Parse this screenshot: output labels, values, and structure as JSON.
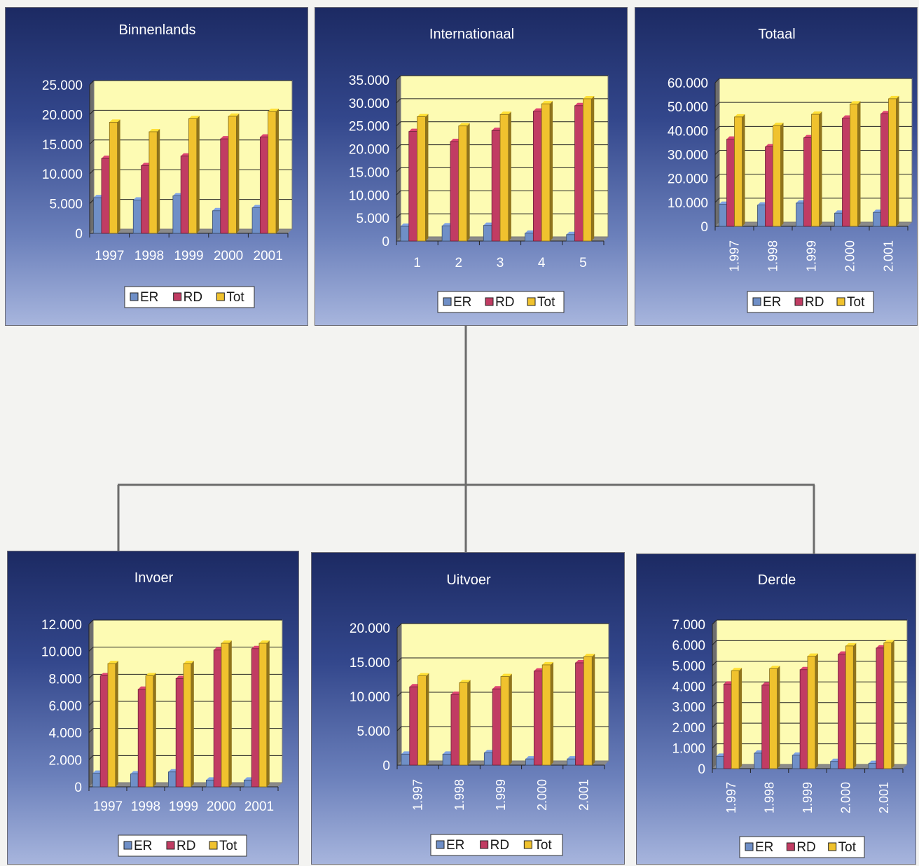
{
  "colors": {
    "ER": "#6f8fc7",
    "RD": "#c13c63",
    "Tot": "#f0c22e",
    "plot_bg": "#fdfbb3",
    "text": "#ffffff",
    "connector": "#6b6b6b"
  },
  "chart_data": [
    {
      "type": "bar",
      "title": "Binnenlands",
      "categories": [
        "1997",
        "1998",
        "1999",
        "2000",
        "2001"
      ],
      "rotate_ticks": false,
      "yticks": [
        "0",
        "5.000",
        "10.000",
        "15.000",
        "20.000",
        "25.000"
      ],
      "ylim": [
        0,
        25000
      ],
      "series": [
        {
          "name": "ER",
          "values": [
            6000,
            5600,
            6300,
            3800,
            4300
          ]
        },
        {
          "name": "RD",
          "values": [
            12600,
            11400,
            13000,
            15900,
            16200
          ]
        },
        {
          "name": "Tot",
          "values": [
            18700,
            17100,
            19300,
            19700,
            20500
          ]
        }
      ],
      "legend": [
        "ER",
        "RD",
        "Tot"
      ]
    },
    {
      "type": "bar",
      "title": "Internationaal",
      "categories": [
        "1",
        "2",
        "3",
        "4",
        "5"
      ],
      "rotate_ticks": false,
      "yticks": [
        "0",
        "5.000",
        "10.000",
        "15.000",
        "20.000",
        "25.000",
        "30.000",
        "35.000"
      ],
      "ylim": [
        0,
        35000
      ],
      "series": [
        {
          "name": "ER",
          "values": [
            3200,
            3300,
            3400,
            1700,
            1400
          ]
        },
        {
          "name": "RD",
          "values": [
            23800,
            21600,
            24000,
            28200,
            29400
          ]
        },
        {
          "name": "Tot",
          "values": [
            27000,
            25000,
            27500,
            29800,
            30900
          ]
        }
      ],
      "legend": [
        "ER",
        "RD",
        "Tot"
      ]
    },
    {
      "type": "bar",
      "title": "Totaal",
      "categories": [
        "1.997",
        "1.998",
        "1.999",
        "2.000",
        "2.001"
      ],
      "rotate_ticks": true,
      "yticks": [
        "0",
        "10.000",
        "20.000",
        "30.000",
        "40.000",
        "50.000",
        "60.000"
      ],
      "ylim": [
        0,
        60000
      ],
      "series": [
        {
          "name": "ER",
          "values": [
            9200,
            8900,
            9700,
            5500,
            5800
          ]
        },
        {
          "name": "RD",
          "values": [
            36400,
            33200,
            37000,
            45200,
            47000
          ]
        },
        {
          "name": "Tot",
          "values": [
            45700,
            42100,
            46800,
            51100,
            53300
          ]
        }
      ],
      "legend": [
        "ER",
        "RD",
        "Tot"
      ]
    },
    {
      "type": "bar",
      "title": "Invoer",
      "categories": [
        "1997",
        "1998",
        "1999",
        "2000",
        "2001"
      ],
      "rotate_ticks": false,
      "yticks": [
        "0",
        "2.000",
        "4.000",
        "6.000",
        "8.000",
        "10.000",
        "12.000"
      ],
      "ylim": [
        0,
        12000
      ],
      "series": [
        {
          "name": "ER",
          "values": [
            1000,
            950,
            1100,
            500,
            500
          ]
        },
        {
          "name": "RD",
          "values": [
            8200,
            7200,
            8000,
            10100,
            10200
          ]
        },
        {
          "name": "Tot",
          "values": [
            9100,
            8200,
            9100,
            10600,
            10600
          ]
        }
      ],
      "legend": [
        "ER",
        "RD",
        "Tot"
      ]
    },
    {
      "type": "bar",
      "title": "Uitvoer",
      "categories": [
        "1.997",
        "1.998",
        "1.999",
        "2.000",
        "2.001"
      ],
      "rotate_ticks": true,
      "yticks": [
        "0",
        "5.000",
        "10.000",
        "15.000",
        "20.000"
      ],
      "ylim": [
        0,
        20000
      ],
      "series": [
        {
          "name": "ER",
          "values": [
            1600,
            1600,
            1800,
            900,
            900
          ]
        },
        {
          "name": "RD",
          "values": [
            11400,
            10300,
            11100,
            13700,
            14900
          ]
        },
        {
          "name": "Tot",
          "values": [
            13000,
            12000,
            12900,
            14600,
            15800
          ]
        }
      ],
      "legend": [
        "ER",
        "RD",
        "Tot"
      ]
    },
    {
      "type": "bar",
      "title": "Derde",
      "categories": [
        "1.997",
        "1.998",
        "1.999",
        "2.000",
        "2.001"
      ],
      "rotate_ticks": true,
      "yticks": [
        "0",
        "1.000",
        "2.000",
        "3.000",
        "4.000",
        "5.000",
        "6.000",
        "7.000"
      ],
      "ylim": [
        0,
        7000
      ],
      "series": [
        {
          "name": "ER",
          "values": [
            600,
            750,
            650,
            350,
            250
          ]
        },
        {
          "name": "RD",
          "values": [
            4100,
            4050,
            4800,
            5550,
            5850
          ]
        },
        {
          "name": "Tot",
          "values": [
            4750,
            4850,
            5450,
            5950,
            6100
          ]
        }
      ],
      "legend": [
        "ER",
        "RD",
        "Tot"
      ]
    }
  ]
}
